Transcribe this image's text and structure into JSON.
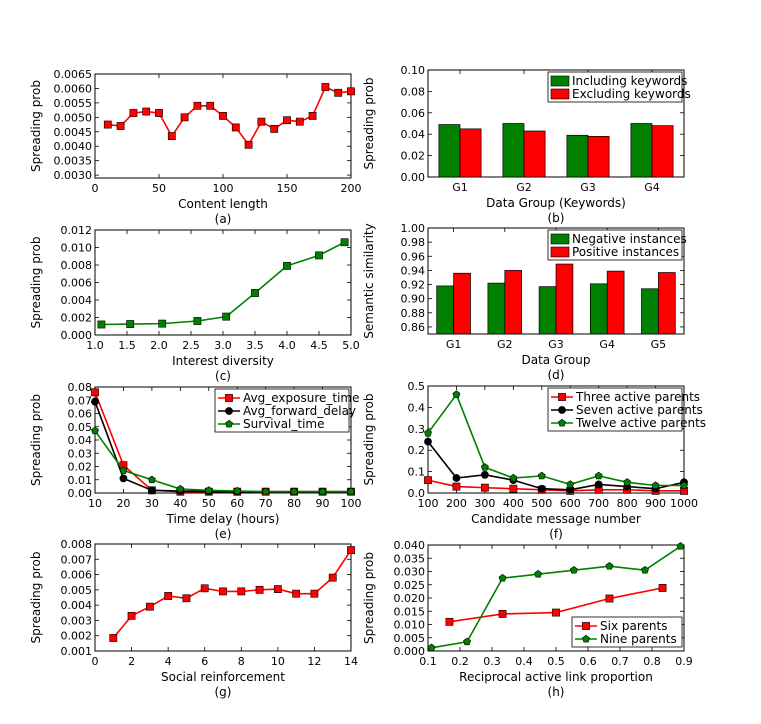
{
  "chart_data": [
    {
      "id": "a",
      "type": "line",
      "caption": "(a)",
      "xlabel": "Content length",
      "ylabel": "Spreading prob",
      "xlim": [
        0,
        200
      ],
      "ylim": [
        0.0029,
        0.0065
      ],
      "xticks": [
        "0",
        "50",
        "100",
        "150",
        "200"
      ],
      "yticks": [
        "0.0030",
        "0.0035",
        "0.0040",
        "0.0045",
        "0.0050",
        "0.0055",
        "0.0060",
        "0.0065"
      ],
      "series": [
        {
          "name": "Spreading prob",
          "color": "#ff0000",
          "marker": "square",
          "x": [
            10,
            20,
            30,
            40,
            50,
            60,
            70,
            80,
            90,
            100,
            110,
            120,
            130,
            140,
            150,
            160,
            170,
            180,
            190,
            200
          ],
          "values": [
            0.00475,
            0.0047,
            0.00515,
            0.0052,
            0.00515,
            0.00435,
            0.005,
            0.0054,
            0.0054,
            0.00505,
            0.00465,
            0.00405,
            0.00485,
            0.0046,
            0.0049,
            0.00485,
            0.00505,
            0.00605,
            0.00585,
            0.0059
          ]
        }
      ]
    },
    {
      "id": "b",
      "type": "bar",
      "caption": "(b)",
      "xlabel": "Data Group (Keywords)",
      "ylabel": "Spreading prob",
      "ylim": [
        0.0,
        0.1
      ],
      "yticks": [
        "0.00",
        "0.02",
        "0.04",
        "0.06",
        "0.08",
        "0.10"
      ],
      "categories": [
        "G1",
        "G2",
        "G3",
        "G4"
      ],
      "legend_loc": "top-right",
      "series": [
        {
          "name": "Including keywords",
          "color": "#008000",
          "values": [
            0.049,
            0.05,
            0.039,
            0.05
          ]
        },
        {
          "name": "Excluding keywords",
          "color": "#ff0000",
          "values": [
            0.045,
            0.043,
            0.038,
            0.048
          ]
        }
      ]
    },
    {
      "id": "c",
      "type": "line",
      "caption": "(c)",
      "xlabel": "Interest diversity",
      "ylabel": "Spreading prob",
      "xlim": [
        1.0,
        5.0
      ],
      "ylim": [
        0.0,
        0.012
      ],
      "xticks": [
        "1.0",
        "1.5",
        "2.0",
        "2.5",
        "3.0",
        "3.5",
        "4.0",
        "4.5",
        "5.0"
      ],
      "yticks": [
        "0.000",
        "0.002",
        "0.004",
        "0.006",
        "0.008",
        "0.010",
        "0.012"
      ],
      "series": [
        {
          "name": "Spreading prob",
          "color": "#008000",
          "marker": "square",
          "x": [
            1.1,
            1.55,
            2.05,
            2.6,
            3.05,
            3.5,
            4.0,
            4.5,
            4.9
          ],
          "values": [
            0.0012,
            0.00125,
            0.0013,
            0.0016,
            0.0021,
            0.0048,
            0.0079,
            0.0091,
            0.0106
          ]
        }
      ]
    },
    {
      "id": "d",
      "type": "bar",
      "caption": "(d)",
      "xlabel": "Data Group",
      "ylabel": "Semantic similarity",
      "ylim": [
        0.85,
        1.0
      ],
      "yticks": [
        "0.86",
        "0.88",
        "0.90",
        "0.92",
        "0.94",
        "0.96",
        "0.98",
        "1.00"
      ],
      "categories": [
        "G1",
        "G2",
        "G3",
        "G4",
        "G5"
      ],
      "legend_loc": "top-right",
      "series": [
        {
          "name": "Negative instances",
          "color": "#008000",
          "values": [
            0.918,
            0.922,
            0.917,
            0.921,
            0.914
          ]
        },
        {
          "name": "Positive instances",
          "color": "#ff0000",
          "values": [
            0.936,
            0.94,
            0.949,
            0.939,
            0.937
          ]
        }
      ]
    },
    {
      "id": "e",
      "type": "line",
      "caption": "(e)",
      "xlabel": "Time delay (hours)",
      "ylabel": "Spreading prob",
      "xlim": [
        10,
        100
      ],
      "ylim": [
        0.0,
        0.08
      ],
      "xticks": [
        "10",
        "20",
        "30",
        "40",
        "50",
        "60",
        "70",
        "80",
        "90",
        "100"
      ],
      "yticks": [
        "0.00",
        "0.01",
        "0.02",
        "0.03",
        "0.04",
        "0.05",
        "0.06",
        "0.07",
        "0.08"
      ],
      "legend_loc": "top-right",
      "x": [
        10,
        20,
        30,
        40,
        50,
        60,
        70,
        80,
        90,
        100
      ],
      "series": [
        {
          "name": "Avg_exposure_time",
          "color": "#ff0000",
          "marker": "square",
          "values": [
            0.076,
            0.021,
            0.002,
            0.001,
            0.001,
            0.001,
            0.001,
            0.001,
            0.001,
            0.001
          ]
        },
        {
          "name": "Avg_forward_delay",
          "color": "#000000",
          "marker": "circle",
          "values": [
            0.069,
            0.011,
            0.002,
            0.0015,
            0.0012,
            0.001,
            0.001,
            0.001,
            0.001,
            0.001
          ]
        },
        {
          "name": "Survival_time",
          "color": "#008000",
          "marker": "pentagon",
          "values": [
            0.047,
            0.017,
            0.01,
            0.003,
            0.002,
            0.0015,
            0.001,
            0.001,
            0.001,
            0.001
          ]
        }
      ]
    },
    {
      "id": "f",
      "type": "line",
      "caption": "(f)",
      "xlabel": "Candidate message number",
      "ylabel": "Spreading prob",
      "xlim": [
        100,
        1000
      ],
      "ylim": [
        0.0,
        0.5
      ],
      "xticks": [
        "100",
        "200",
        "300",
        "400",
        "500",
        "600",
        "700",
        "800",
        "900",
        "1000"
      ],
      "yticks": [
        "0.0",
        "0.1",
        "0.2",
        "0.3",
        "0.4",
        "0.5"
      ],
      "legend_loc": "top-right",
      "x": [
        100,
        200,
        300,
        400,
        500,
        600,
        700,
        800,
        900,
        1000
      ],
      "series": [
        {
          "name": "Three active parents",
          "color": "#ff0000",
          "marker": "square",
          "values": [
            0.06,
            0.03,
            0.025,
            0.02,
            0.015,
            0.01,
            0.015,
            0.015,
            0.01,
            0.01
          ]
        },
        {
          "name": "Seven active parents",
          "color": "#000000",
          "marker": "circle",
          "values": [
            0.24,
            0.07,
            0.085,
            0.06,
            0.02,
            0.015,
            0.04,
            0.03,
            0.02,
            0.05
          ]
        },
        {
          "name": "Twelve active parents",
          "color": "#008000",
          "marker": "pentagon",
          "values": [
            0.28,
            0.46,
            0.12,
            0.07,
            0.08,
            0.04,
            0.08,
            0.05,
            0.035,
            0.035
          ]
        }
      ]
    },
    {
      "id": "g",
      "type": "line",
      "caption": "(g)",
      "xlabel": "Social reinforcement",
      "ylabel": "Spreading prob",
      "xlim": [
        0,
        14
      ],
      "ylim": [
        0.001,
        0.008
      ],
      "xticks": [
        "0",
        "2",
        "4",
        "6",
        "8",
        "10",
        "12",
        "14"
      ],
      "yticks": [
        "0.001",
        "0.002",
        "0.003",
        "0.004",
        "0.005",
        "0.006",
        "0.007",
        "0.008"
      ],
      "series": [
        {
          "name": "Spreading prob",
          "color": "#ff0000",
          "marker": "square",
          "x": [
            1,
            2,
            3,
            4,
            5,
            6,
            7,
            8,
            9,
            10,
            11,
            12,
            13,
            14
          ],
          "values": [
            0.00185,
            0.0033,
            0.0039,
            0.0046,
            0.00445,
            0.0051,
            0.0049,
            0.0049,
            0.005,
            0.00505,
            0.00475,
            0.00475,
            0.0058,
            0.0076
          ]
        }
      ]
    },
    {
      "id": "h",
      "type": "line",
      "caption": "(h)",
      "xlabel": "Reciprocal active link proportion",
      "ylabel": "Spreading prob",
      "xlim": [
        0.1,
        0.9
      ],
      "ylim": [
        0.0,
        0.04
      ],
      "xticks": [
        "0.1",
        "0.2",
        "0.3",
        "0.4",
        "0.5",
        "0.6",
        "0.7",
        "0.8",
        "0.9"
      ],
      "yticks": [
        "0.000",
        "0.005",
        "0.010",
        "0.015",
        "0.020",
        "0.025",
        "0.030",
        "0.035",
        "0.040"
      ],
      "legend_loc": "bottom-right",
      "series": [
        {
          "name": "Six parents",
          "color": "#ff0000",
          "marker": "square",
          "x": [
            0.167,
            0.333,
            0.5,
            0.667,
            0.833
          ],
          "values": [
            0.011,
            0.014,
            0.0145,
            0.0198,
            0.0238
          ]
        },
        {
          "name": "Nine parents",
          "color": "#008000",
          "marker": "pentagon",
          "x": [
            0.111,
            0.222,
            0.333,
            0.444,
            0.556,
            0.667,
            0.778,
            0.889
          ],
          "values": [
            0.0012,
            0.0035,
            0.0275,
            0.029,
            0.0305,
            0.032,
            0.0305,
            0.0395
          ]
        }
      ]
    }
  ]
}
